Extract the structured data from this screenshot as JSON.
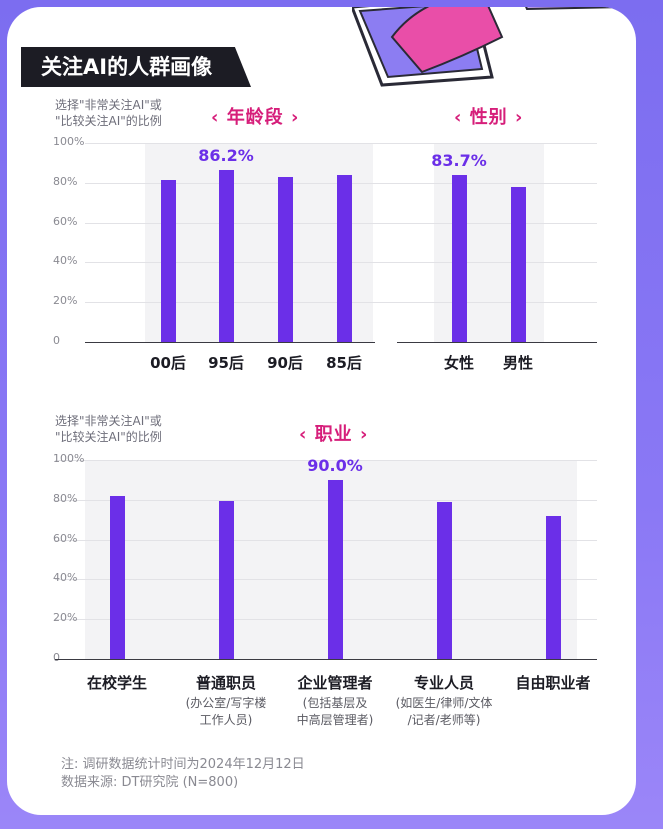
{
  "header": {
    "title": "关注AI的人群画像"
  },
  "y_note": "选择\"非常关注AI\"或\n\"比较关注AI\"的比例",
  "chart_data": [
    {
      "type": "bar",
      "title": "年龄段",
      "categories": [
        "00后",
        "95后",
        "90后",
        "85后"
      ],
      "values": [
        81.5,
        86.2,
        83,
        84
      ],
      "data_labels": {
        "95后": "86.2%"
      },
      "ylim": [
        0,
        100
      ],
      "yticks": [
        "0",
        "20%",
        "40%",
        "60%",
        "80%",
        "100%"
      ],
      "grid": true
    },
    {
      "type": "bar",
      "title": "性别",
      "categories": [
        "女性",
        "男性"
      ],
      "values": [
        83.7,
        78
      ],
      "data_labels": {
        "女性": "83.7%"
      },
      "ylim": [
        0,
        100
      ],
      "grid": true
    },
    {
      "type": "bar",
      "title": "职业",
      "categories": [
        "在校学生",
        "普通职员",
        "企业管理者",
        "专业人员",
        "自由职业者"
      ],
      "subcategories": [
        "",
        "(办公室/写字楼\n工作人员)",
        "(包括基层及\n中高层管理者)",
        "(如医生/律师/文体\n/记者/老师等)",
        ""
      ],
      "values": [
        82,
        79.5,
        90.0,
        79,
        72
      ],
      "data_labels": {
        "企业管理者": "90.0%"
      },
      "ylim": [
        0,
        100
      ],
      "yticks": [
        "0",
        "20%",
        "40%",
        "60%",
        "80%",
        "100%"
      ],
      "grid": true
    }
  ],
  "footnotes": {
    "line1": "注: 调研数据统计时间为2024年12月12日",
    "line2": "数据来源: DT研究院 (N=800)"
  },
  "colors": {
    "bar": "#6b2fe8",
    "accent": "#d61e7a",
    "badge_bg": "#1c1c24"
  }
}
